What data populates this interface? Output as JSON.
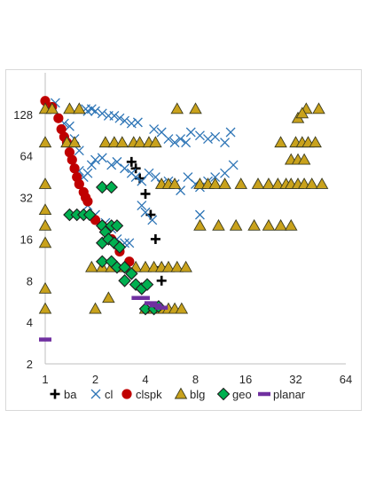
{
  "chart_data": {
    "type": "scatter",
    "title": "",
    "xlabel": "",
    "ylabel": "",
    "x_scale": "log2",
    "y_scale": "log2",
    "xlim": [
      1,
      64
    ],
    "ylim": [
      2,
      256
    ],
    "x_ticks": [
      "1",
      "2",
      "4",
      "8",
      "16",
      "32",
      "64"
    ],
    "y_ticks": [
      "2",
      "4",
      "8",
      "16",
      "32",
      "64",
      "128"
    ],
    "grid": false,
    "legend_position": "bottom",
    "series": [
      {
        "name": "ba",
        "marker": "plus",
        "color": "#000000",
        "points": [
          [
            3.3,
            58
          ],
          [
            3.5,
            52
          ],
          [
            3.7,
            44
          ],
          [
            4.0,
            34
          ],
          [
            4.3,
            24
          ],
          [
            4.6,
            16
          ],
          [
            5.0,
            10
          ],
          [
            5.0,
            8
          ]
        ]
      },
      {
        "name": "cl",
        "marker": "x",
        "color": "#2E75B6",
        "points": [
          [
            1.15,
            155
          ],
          [
            1.3,
            110
          ],
          [
            1.4,
            105
          ],
          [
            1.5,
            85
          ],
          [
            1.6,
            70
          ],
          [
            1.75,
            140
          ],
          [
            1.8,
            135
          ],
          [
            1.9,
            140
          ],
          [
            2.0,
            135
          ],
          [
            2.2,
            130
          ],
          [
            2.4,
            125
          ],
          [
            2.6,
            125
          ],
          [
            2.8,
            120
          ],
          [
            3.0,
            115
          ],
          [
            3.3,
            110
          ],
          [
            3.6,
            112
          ],
          [
            1.6,
            50
          ],
          [
            1.7,
            45
          ],
          [
            1.8,
            48
          ],
          [
            1.9,
            55
          ],
          [
            2.0,
            60
          ],
          [
            2.2,
            62
          ],
          [
            2.5,
            55
          ],
          [
            2.7,
            58
          ],
          [
            3.0,
            52
          ],
          [
            3.3,
            48
          ],
          [
            3.5,
            45
          ],
          [
            3.8,
            42
          ],
          [
            1.8,
            28
          ],
          [
            2.0,
            24
          ],
          [
            2.3,
            21
          ],
          [
            2.5,
            19
          ],
          [
            2.7,
            16
          ],
          [
            3.0,
            15
          ],
          [
            3.2,
            15
          ],
          [
            4.5,
            100
          ],
          [
            5.0,
            95
          ],
          [
            5.5,
            85
          ],
          [
            6.0,
            80
          ],
          [
            6.5,
            85
          ],
          [
            7.0,
            80
          ],
          [
            7.5,
            95
          ],
          [
            8.5,
            90
          ],
          [
            9.5,
            85
          ],
          [
            10.5,
            88
          ],
          [
            12.0,
            80
          ],
          [
            13.0,
            95
          ],
          [
            4.2,
            48
          ],
          [
            4.6,
            45
          ],
          [
            5.0,
            40
          ],
          [
            5.5,
            42
          ],
          [
            6.0,
            40
          ],
          [
            6.5,
            36
          ],
          [
            7.2,
            45
          ],
          [
            8.0,
            40
          ],
          [
            8.5,
            38
          ],
          [
            9.5,
            42
          ],
          [
            10.5,
            45
          ],
          [
            12.0,
            48
          ],
          [
            13.5,
            55
          ],
          [
            3.8,
            28
          ],
          [
            4.0,
            25
          ],
          [
            4.4,
            22
          ],
          [
            8.5,
            24
          ]
        ]
      },
      {
        "name": "clspk",
        "marker": "circle",
        "color": "#C00000",
        "points": [
          [
            1.0,
            160
          ],
          [
            1.1,
            145
          ],
          [
            1.2,
            120
          ],
          [
            1.25,
            100
          ],
          [
            1.3,
            88
          ],
          [
            1.35,
            80
          ],
          [
            1.4,
            68
          ],
          [
            1.45,
            60
          ],
          [
            1.5,
            52
          ],
          [
            1.55,
            45
          ],
          [
            1.6,
            40
          ],
          [
            1.7,
            35
          ],
          [
            1.75,
            32
          ],
          [
            1.8,
            30
          ],
          [
            2.0,
            22
          ],
          [
            2.2,
            20
          ],
          [
            2.5,
            16
          ],
          [
            2.8,
            13
          ],
          [
            3.2,
            11
          ]
        ]
      },
      {
        "name": "blg",
        "marker": "triangle",
        "color": "#C9A21C",
        "points": [
          [
            1.0,
            140
          ],
          [
            1.1,
            140
          ],
          [
            1.4,
            140
          ],
          [
            1.6,
            140
          ],
          [
            6.2,
            140
          ],
          [
            8.0,
            140
          ],
          [
            37.0,
            140
          ],
          [
            44.0,
            140
          ],
          [
            33.0,
            120
          ],
          [
            35.0,
            130
          ],
          [
            1.0,
            80
          ],
          [
            1.35,
            80
          ],
          [
            1.5,
            80
          ],
          [
            2.3,
            80
          ],
          [
            2.6,
            80
          ],
          [
            2.9,
            80
          ],
          [
            3.4,
            80
          ],
          [
            3.7,
            80
          ],
          [
            4.2,
            80
          ],
          [
            4.6,
            80
          ],
          [
            26.0,
            80
          ],
          [
            32.0,
            80
          ],
          [
            35.0,
            80
          ],
          [
            38.0,
            80
          ],
          [
            42.0,
            80
          ],
          [
            30.0,
            60
          ],
          [
            33.0,
            60
          ],
          [
            36.0,
            60
          ],
          [
            1.0,
            40
          ],
          [
            5.0,
            40
          ],
          [
            5.5,
            40
          ],
          [
            6.0,
            40
          ],
          [
            8.5,
            40
          ],
          [
            9.5,
            40
          ],
          [
            10.5,
            40
          ],
          [
            12.0,
            40
          ],
          [
            15.0,
            40
          ],
          [
            19.0,
            40
          ],
          [
            22.0,
            40
          ],
          [
            25.0,
            40
          ],
          [
            28.0,
            40
          ],
          [
            30.0,
            40
          ],
          [
            33.0,
            40
          ],
          [
            36.0,
            40
          ],
          [
            40.0,
            40
          ],
          [
            46.0,
            40
          ],
          [
            1.0,
            26
          ],
          [
            1.0,
            20
          ],
          [
            1.0,
            15
          ],
          [
            8.5,
            20
          ],
          [
            11.0,
            20
          ],
          [
            14.0,
            20
          ],
          [
            18.0,
            20
          ],
          [
            22.0,
            20
          ],
          [
            26.0,
            20
          ],
          [
            30.0,
            20
          ],
          [
            1.9,
            10
          ],
          [
            2.2,
            10
          ],
          [
            2.5,
            10
          ],
          [
            3.0,
            10
          ],
          [
            3.5,
            10
          ],
          [
            4.0,
            10
          ],
          [
            4.5,
            10
          ],
          [
            5.0,
            10
          ],
          [
            5.5,
            10
          ],
          [
            6.2,
            10
          ],
          [
            7.0,
            10
          ],
          [
            1.0,
            7
          ],
          [
            2.4,
            6
          ],
          [
            1.0,
            5
          ],
          [
            2.0,
            5
          ],
          [
            4.0,
            5
          ],
          [
            4.5,
            5
          ],
          [
            5.0,
            5
          ],
          [
            5.5,
            5
          ],
          [
            6.0,
            5
          ],
          [
            6.6,
            5
          ]
        ]
      },
      {
        "name": "geo",
        "marker": "diamond",
        "color": "#00B050",
        "points": [
          [
            1.4,
            24
          ],
          [
            1.55,
            24
          ],
          [
            1.7,
            24
          ],
          [
            1.85,
            24
          ],
          [
            2.2,
            20
          ],
          [
            2.5,
            20
          ],
          [
            2.7,
            20
          ],
          [
            2.3,
            18
          ],
          [
            2.2,
            15
          ],
          [
            2.4,
            16
          ],
          [
            2.6,
            15
          ],
          [
            2.8,
            14
          ],
          [
            2.2,
            11
          ],
          [
            2.5,
            11
          ],
          [
            2.7,
            10
          ],
          [
            3.0,
            10
          ],
          [
            3.3,
            9
          ],
          [
            3.0,
            8
          ],
          [
            3.5,
            7.5
          ],
          [
            3.8,
            7
          ],
          [
            4.1,
            7.5
          ],
          [
            4.0,
            5
          ],
          [
            4.5,
            5
          ],
          [
            4.8,
            5.2
          ],
          [
            2.2,
            38
          ],
          [
            2.5,
            38
          ]
        ]
      },
      {
        "name": "planar",
        "marker": "dash",
        "color": "#7030A0",
        "points": [
          [
            1.0,
            3
          ],
          [
            3.6,
            6
          ],
          [
            3.9,
            6
          ],
          [
            4.3,
            5.5
          ],
          [
            4.6,
            5.3
          ],
          [
            5.0,
            5.1
          ]
        ]
      }
    ]
  }
}
